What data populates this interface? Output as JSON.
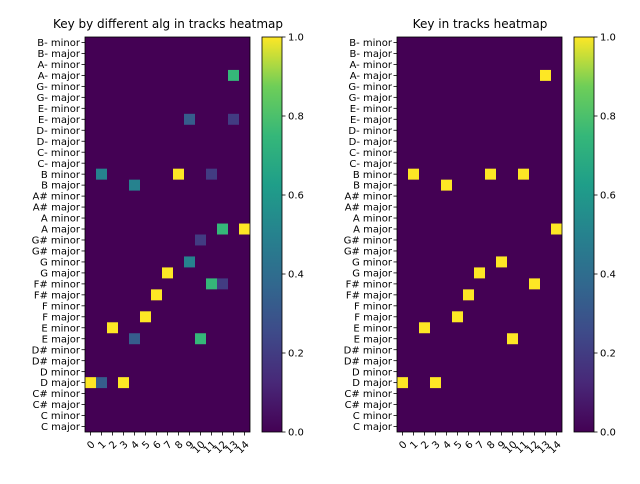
{
  "chart_data": [
    {
      "type": "heatmap",
      "title": "Key by different alg in tracks heatmap",
      "y_categories": [
        "C major",
        "C minor",
        "C# major",
        "C# minor",
        "D major",
        "D minor",
        "D# major",
        "D# minor",
        "E major",
        "E minor",
        "F major",
        "F minor",
        "F# major",
        "F# minor",
        "G major",
        "G minor",
        "G# major",
        "G# minor",
        "A major",
        "A minor",
        "A# major",
        "A# minor",
        "B major",
        "B minor",
        "C- major",
        "C- minor",
        "D- major",
        "D- minor",
        "E- major",
        "E- minor",
        "G- major",
        "G- minor",
        "A- major",
        "A- minor",
        "B- major",
        "B- minor"
      ],
      "x_categories": [
        "0",
        "1",
        "2",
        "3",
        "4",
        "5",
        "6",
        "7",
        "8",
        "9",
        "10",
        "11",
        "12",
        "13",
        "14"
      ],
      "cells": [
        {
          "x": 0,
          "y": "D major",
          "v": 1.0
        },
        {
          "x": 1,
          "y": "D major",
          "v": 0.33
        },
        {
          "x": 1,
          "y": "B minor",
          "v": 0.5
        },
        {
          "x": 2,
          "y": "E minor",
          "v": 1.0
        },
        {
          "x": 3,
          "y": "D major",
          "v": 1.0
        },
        {
          "x": 4,
          "y": "E major",
          "v": 0.33
        },
        {
          "x": 4,
          "y": "B major",
          "v": 0.5
        },
        {
          "x": 5,
          "y": "F major",
          "v": 1.0
        },
        {
          "x": 6,
          "y": "F# major",
          "v": 1.0
        },
        {
          "x": 7,
          "y": "G major",
          "v": 1.0
        },
        {
          "x": 8,
          "y": "B minor",
          "v": 1.0
        },
        {
          "x": 9,
          "y": "G minor",
          "v": 0.5
        },
        {
          "x": 9,
          "y": "E- major",
          "v": 0.33
        },
        {
          "x": 10,
          "y": "E major",
          "v": 0.75
        },
        {
          "x": 10,
          "y": "G# minor",
          "v": 0.2
        },
        {
          "x": 11,
          "y": "F# minor",
          "v": 0.75
        },
        {
          "x": 11,
          "y": "B minor",
          "v": 0.2
        },
        {
          "x": 12,
          "y": "F# minor",
          "v": 0.2
        },
        {
          "x": 12,
          "y": "A major",
          "v": 0.75
        },
        {
          "x": 13,
          "y": "A- major",
          "v": 0.75
        },
        {
          "x": 13,
          "y": "E- major",
          "v": 0.2
        },
        {
          "x": 14,
          "y": "A major",
          "v": 1.0
        }
      ],
      "colorbar": {
        "min": 0.0,
        "max": 1.0,
        "ticks": [
          "0.0",
          "0.2",
          "0.4",
          "0.6",
          "0.8",
          "1.0"
        ]
      },
      "colormap": "viridis"
    },
    {
      "type": "heatmap",
      "title": "Key in tracks heatmap",
      "y_categories": [
        "C major",
        "C minor",
        "C# major",
        "C# minor",
        "D major",
        "D minor",
        "D# major",
        "D# minor",
        "E major",
        "E minor",
        "F major",
        "F minor",
        "F# major",
        "F# minor",
        "G major",
        "G minor",
        "G# major",
        "G# minor",
        "A major",
        "A minor",
        "A# major",
        "A# minor",
        "B major",
        "B minor",
        "C- major",
        "C- minor",
        "D- major",
        "D- minor",
        "E- major",
        "E- minor",
        "G- major",
        "G- minor",
        "A- major",
        "A- minor",
        "B- major",
        "B- minor"
      ],
      "x_categories": [
        "0",
        "1",
        "2",
        "3",
        "4",
        "5",
        "6",
        "7",
        "8",
        "9",
        "10",
        "11",
        "12",
        "13",
        "14"
      ],
      "cells": [
        {
          "x": 0,
          "y": "D major",
          "v": 1.0
        },
        {
          "x": 1,
          "y": "B minor",
          "v": 1.0
        },
        {
          "x": 2,
          "y": "E minor",
          "v": 1.0
        },
        {
          "x": 3,
          "y": "D major",
          "v": 1.0
        },
        {
          "x": 4,
          "y": "B major",
          "v": 1.0
        },
        {
          "x": 5,
          "y": "F major",
          "v": 1.0
        },
        {
          "x": 6,
          "y": "F# major",
          "v": 1.0
        },
        {
          "x": 7,
          "y": "G major",
          "v": 1.0
        },
        {
          "x": 8,
          "y": "B minor",
          "v": 1.0
        },
        {
          "x": 9,
          "y": "G minor",
          "v": 1.0
        },
        {
          "x": 10,
          "y": "E major",
          "v": 1.0
        },
        {
          "x": 11,
          "y": "B minor",
          "v": 1.0
        },
        {
          "x": 12,
          "y": "F# minor",
          "v": 1.0
        },
        {
          "x": 13,
          "y": "A- major",
          "v": 1.0
        },
        {
          "x": 14,
          "y": "A major",
          "v": 1.0
        }
      ],
      "colorbar": {
        "min": 0.0,
        "max": 1.0,
        "ticks": [
          "0.0",
          "0.2",
          "0.4",
          "0.6",
          "0.8",
          "1.0"
        ]
      },
      "colormap": "viridis"
    }
  ]
}
